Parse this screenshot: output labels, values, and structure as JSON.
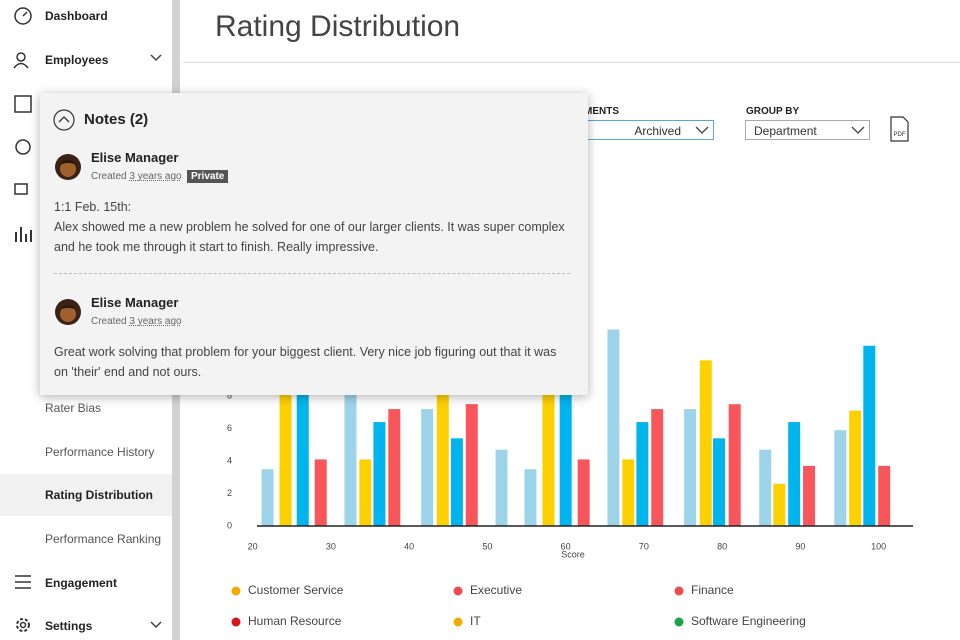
{
  "sidebar": {
    "items": [
      "Dashboard",
      "Employees",
      "Rater Bias",
      "Performance History",
      "Rating Distribution",
      "Performance Ranking",
      "Engagement",
      "Settings"
    ]
  },
  "header": {
    "title": "Rating Distribution"
  },
  "filter": {
    "label": "ASSESSMENTS",
    "value": "Archived"
  },
  "group_by": {
    "label": "GROUP BY",
    "value": "Department"
  },
  "pdf_label": "PDF",
  "notes": {
    "title": "Notes (2)",
    "items": [
      {
        "author": "Elise Manager",
        "created": "Created",
        "time": "3 years ago",
        "badge": "Private",
        "lines": [
          "1:1 Feb. 15th:",
          "Alex showed me a new problem he solved for one of our larger clients. It was super complex",
          "and he took me through it start to finish. Really impressive."
        ]
      },
      {
        "author": "Elise Manager",
        "created": "Created",
        "time": "3 years ago",
        "lines": [
          "Great work solving that problem for your biggest client. Very nice job figuring out that it was",
          "on 'their' end and not ours."
        ]
      }
    ]
  },
  "chart_data": {
    "type": "bar",
    "x_label": "Score",
    "xlim": [
      18,
      104
    ],
    "xticks": [
      20,
      30,
      40,
      50,
      60,
      70,
      80,
      90,
      100
    ],
    "ylim": [
      0,
      12.5
    ],
    "yticks": [
      0,
      2,
      4,
      6,
      8
    ],
    "series": [
      {
        "color": "#9dd4ea",
        "x": [
          21.9,
          32.5,
          42.3,
          51.8,
          55.5,
          66.1,
          75.9,
          85.5,
          95.1
        ],
        "values": [
          3.5,
          8.5,
          7.2,
          4.7,
          3.5,
          12.1,
          7.2,
          4.7,
          5.9
        ]
      },
      {
        "color": "#fdd000",
        "x": [
          24.2,
          34.4,
          44.3,
          57.8,
          68.0,
          77.9,
          87.3,
          97.0
        ],
        "values": [
          9,
          4.1,
          8.5,
          9,
          4.1,
          10.2,
          2.6,
          7.1
        ]
      },
      {
        "color": "#00b5ee",
        "x": [
          26.4,
          36.2,
          46.1,
          60.0,
          69.8,
          79.6,
          89.2,
          98.8
        ],
        "values": [
          9,
          6.4,
          5.4,
          9,
          6.4,
          5.4,
          6.4,
          11.1
        ]
      },
      {
        "color": "#f8565a",
        "x": [
          28.7,
          38.1,
          48.0,
          62.3,
          71.7,
          81.6,
          91.1,
          100.7
        ],
        "values": [
          4.1,
          7.2,
          7.5,
          4.1,
          7.2,
          7.5,
          3.7,
          3.7
        ]
      }
    ],
    "legend": [
      {
        "label": "Customer Service",
        "color": "#f5a800"
      },
      {
        "label": "Executive",
        "color": "#f04a4f"
      },
      {
        "label": "Finance",
        "color": "#f04a4f"
      },
      {
        "label": "Human Resource",
        "color": "#d7161b"
      },
      {
        "label": "IT",
        "color": "#f5a800"
      },
      {
        "label": "Software Engineering",
        "color": "#1ba34a"
      }
    ]
  }
}
